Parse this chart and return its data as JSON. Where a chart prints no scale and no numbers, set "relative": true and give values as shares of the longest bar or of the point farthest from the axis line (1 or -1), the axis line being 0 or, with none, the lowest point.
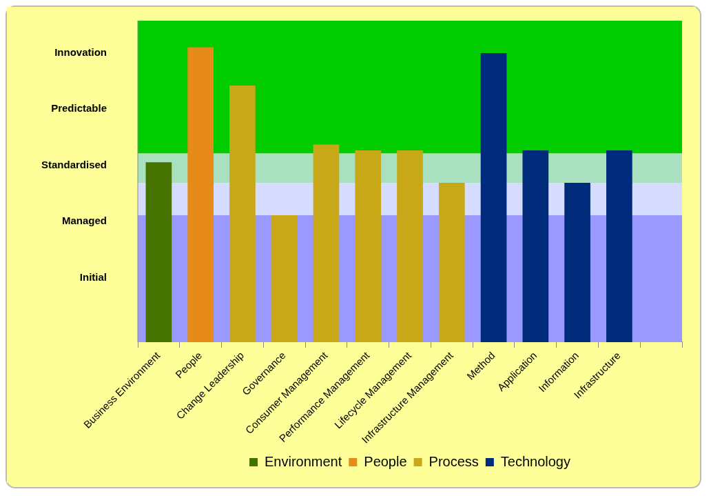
{
  "chart_data": {
    "type": "bar",
    "categories": [
      "Business Environment",
      "People",
      "Change Leadership",
      "Governance",
      "Consumer Management",
      "Performance Management",
      "Lifecycle Management",
      "Infrastructure Management",
      "Method",
      "Application",
      "Information",
      "Infrastructure",
      null
    ],
    "series": [
      {
        "name": "Environment",
        "color": "#467300",
        "values": [
          0.61,
          null,
          null,
          null,
          null,
          null,
          null,
          null,
          null,
          null,
          null,
          null,
          null
        ]
      },
      {
        "name": "People",
        "color": "#e68a1a",
        "values": [
          null,
          1,
          null,
          null,
          null,
          null,
          null,
          null,
          null,
          null,
          null,
          null,
          null
        ]
      },
      {
        "name": "Process",
        "color": "#c8a818",
        "values": [
          null,
          null,
          0.87,
          0.43,
          0.67,
          0.65,
          0.65,
          0.54,
          null,
          null,
          null,
          null,
          null
        ]
      },
      {
        "name": "Technology",
        "color": "#002b7a",
        "values": [
          null,
          null,
          null,
          null,
          null,
          null,
          null,
          null,
          0.98,
          0.65,
          0.54,
          0.65,
          null
        ]
      }
    ],
    "relative": true,
    "annotations": [
      "Initial",
      "Managed",
      "Standardised",
      "Predictable",
      "Innovation"
    ],
    "bands": [
      {
        "axis": "y",
        "from": 0,
        "to": 0.43,
        "color": "#9999ff"
      },
      {
        "axis": "y",
        "from": 0.43,
        "to": 0.54,
        "color": "#d6dcff"
      },
      {
        "axis": "y",
        "from": 0.54,
        "to": 0.64,
        "color": "#a8e0c0"
      },
      {
        "axis": "y",
        "from": 0.64,
        "to": 1.09,
        "color": "#00cc00"
      }
    ],
    "legend": "bottom"
  }
}
